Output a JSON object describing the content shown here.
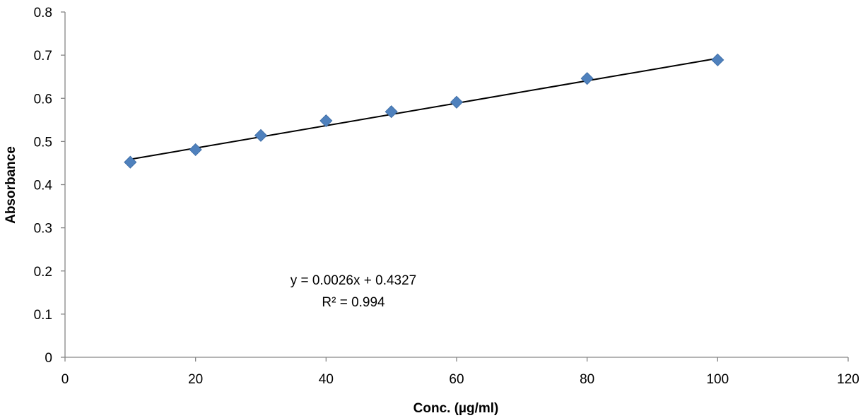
{
  "chart_data": {
    "type": "scatter",
    "title": "",
    "xlabel": "Conc. (µg/ml)",
    "ylabel": "Absorbance",
    "xlim": [
      0,
      120
    ],
    "ylim": [
      0,
      0.8
    ],
    "x_ticks": [
      0,
      20,
      40,
      60,
      80,
      100,
      120
    ],
    "y_ticks": [
      0,
      0.1,
      0.2,
      0.3,
      0.4,
      0.5,
      0.6,
      0.7,
      0.8
    ],
    "x_tick_labels": [
      "0",
      "20",
      "40",
      "60",
      "80",
      "100",
      "120"
    ],
    "y_tick_labels": [
      "0",
      "0.1",
      "0.2",
      "0.3",
      "0.4",
      "0.5",
      "0.6",
      "0.7",
      "0.8"
    ],
    "grid": false,
    "legend": "none",
    "series": [
      {
        "marker": "diamond",
        "color": "#4F81BD",
        "x": [
          10,
          20,
          30,
          40,
          50,
          60,
          80,
          100
        ],
        "y": [
          0.452,
          0.481,
          0.514,
          0.548,
          0.569,
          0.591,
          0.646,
          0.689
        ]
      }
    ],
    "trendline": {
      "type": "linear",
      "slope": 0.0026,
      "intercept": 0.4327,
      "x_range": [
        10,
        100
      ],
      "color": "#000000"
    },
    "annotations": {
      "equation": "y = 0.0026x + 0.4327",
      "r_squared": "R² = 0.994"
    }
  }
}
